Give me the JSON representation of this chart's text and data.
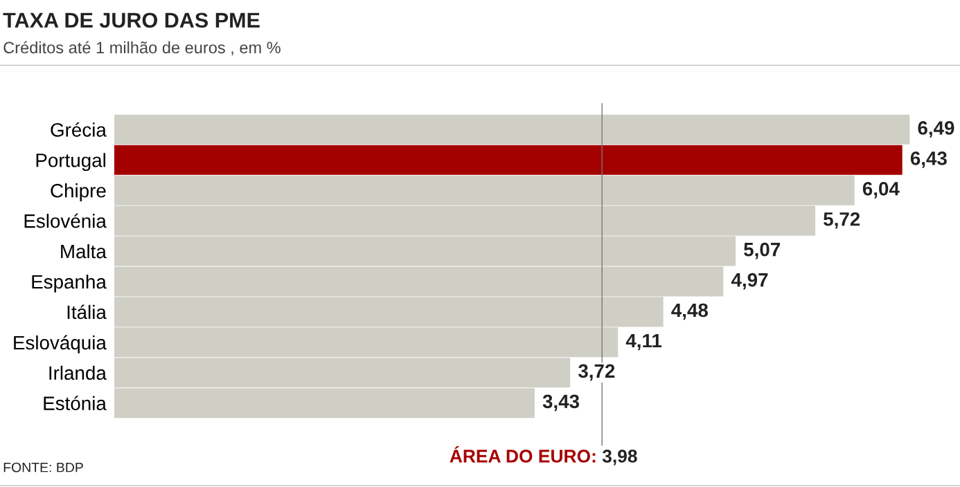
{
  "chart_data": {
    "type": "bar",
    "orientation": "horizontal",
    "title": "TAXA DE JURO DAS PME",
    "subtitle": "Créditos até 1 milhão de euros , em %",
    "categories": [
      "Grécia",
      "Portugal",
      "Chipre",
      "Eslovénia",
      "Malta",
      "Espanha",
      "Itália",
      "Eslováquia",
      "Irlanda",
      "Estónia"
    ],
    "values": [
      6.49,
      6.43,
      6.04,
      5.72,
      5.07,
      4.97,
      4.48,
      4.11,
      3.72,
      3.43
    ],
    "colors": [
      "#d0cfc6",
      "#a50000",
      "#d0cfc6",
      "#d0cfc6",
      "#d0cfc6",
      "#d0cfc6",
      "#d0cfc6",
      "#d0cfc6",
      "#d0cfc6",
      "#d0cfc6"
    ],
    "value_labels": [
      "6,49",
      "6,43",
      "6,04",
      "5,72",
      "5,07",
      "4,97",
      "4,48",
      "4,11",
      "3,72",
      "3,43"
    ],
    "tick_labels": "y",
    "grid": false,
    "ref_lines": [
      {
        "axis": "x",
        "value": 3.98,
        "label": "ÁREA DO EURO: 3,98",
        "color": "#777777"
      }
    ],
    "annotations": [
      "FONTE: BDP"
    ]
  }
}
